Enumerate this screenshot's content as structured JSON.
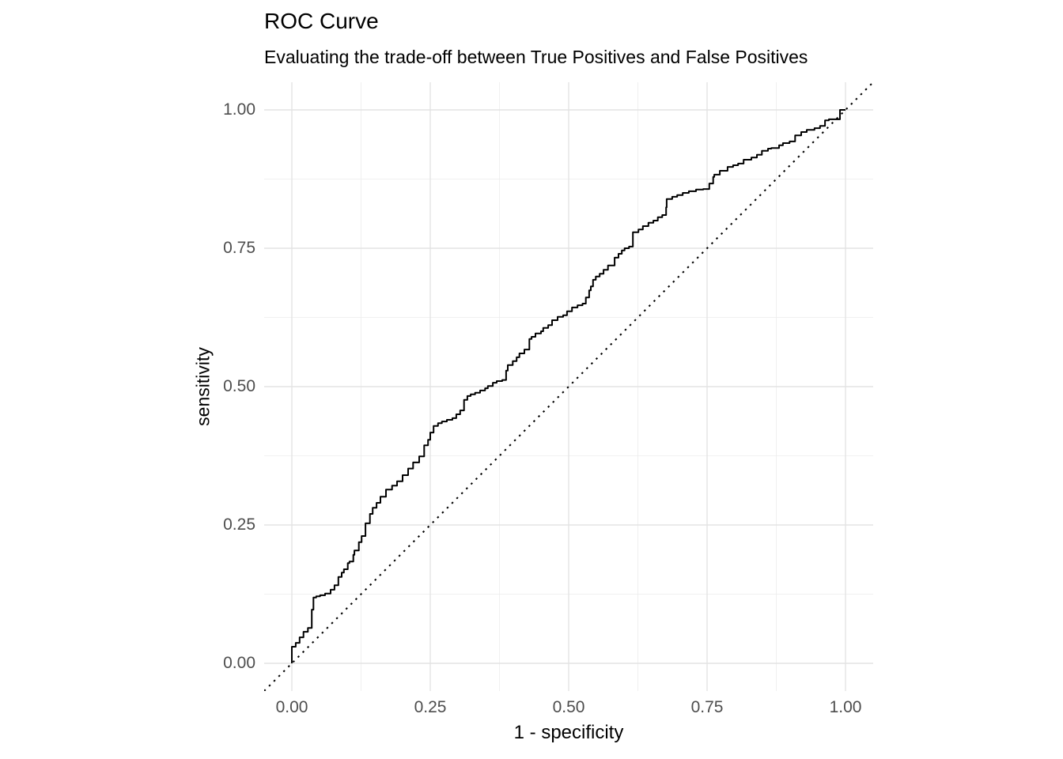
{
  "title": "ROC Curve",
  "subtitle": "Evaluating the trade-off between True Positives and False Positives",
  "colors": {
    "background": "#ffffff",
    "title_text": "#000000",
    "subtitle_text": "#000000",
    "axis_title_text": "#000000",
    "axis_tick_text": "#4d4d4d",
    "grid_major": "#e3e3e3",
    "grid_minor": "#ededed",
    "roc_curve": "#000000",
    "chance_diagonal": "#000000"
  },
  "chart_data": {
    "type": "line",
    "title": "ROC Curve",
    "subtitle": "Evaluating the trade-off between True Positives and False Positives",
    "xlabel": "1 - specificity",
    "ylabel": "sensitivity",
    "xlim": [
      -0.05,
      1.05
    ],
    "ylim": [
      -0.05,
      1.05
    ],
    "grid": "major+minor",
    "legend": "none",
    "x_axis": {
      "ticks": [
        {
          "value": 0.0,
          "label": "0.00"
        },
        {
          "value": 0.25,
          "label": "0.25"
        },
        {
          "value": 0.5,
          "label": "0.50"
        },
        {
          "value": 0.75,
          "label": "0.75"
        },
        {
          "value": 1.0,
          "label": "1.00"
        }
      ],
      "minor_ticks": [
        0.125,
        0.375,
        0.625,
        0.875
      ]
    },
    "y_axis": {
      "ticks": [
        {
          "value": 0.0,
          "label": "0.00"
        },
        {
          "value": 0.25,
          "label": "0.25"
        },
        {
          "value": 0.5,
          "label": "0.50"
        },
        {
          "value": 0.75,
          "label": "0.75"
        },
        {
          "value": 1.0,
          "label": "1.00"
        }
      ],
      "minor_ticks": [
        0.125,
        0.375,
        0.625,
        0.875
      ]
    },
    "series": [
      {
        "name": "roc_curve",
        "style": "step-solid",
        "points": [
          [
            0.0,
            0.0
          ],
          [
            0.0,
            0.02
          ],
          [
            0.007,
            0.03
          ],
          [
            0.014,
            0.037
          ],
          [
            0.021,
            0.047
          ],
          [
            0.029,
            0.057
          ],
          [
            0.036,
            0.064
          ],
          [
            0.039,
            0.097
          ],
          [
            0.044,
            0.119
          ],
          [
            0.051,
            0.121
          ],
          [
            0.06,
            0.123
          ],
          [
            0.07,
            0.126
          ],
          [
            0.077,
            0.133
          ],
          [
            0.084,
            0.141
          ],
          [
            0.09,
            0.156
          ],
          [
            0.094,
            0.164
          ],
          [
            0.101,
            0.17
          ],
          [
            0.104,
            0.181
          ],
          [
            0.111,
            0.184
          ],
          [
            0.113,
            0.196
          ],
          [
            0.121,
            0.204
          ],
          [
            0.126,
            0.219
          ],
          [
            0.133,
            0.23
          ],
          [
            0.141,
            0.253
          ],
          [
            0.146,
            0.27
          ],
          [
            0.153,
            0.281
          ],
          [
            0.16,
            0.29
          ],
          [
            0.17,
            0.301
          ],
          [
            0.181,
            0.314
          ],
          [
            0.19,
            0.321
          ],
          [
            0.2,
            0.329
          ],
          [
            0.21,
            0.34
          ],
          [
            0.219,
            0.352
          ],
          [
            0.23,
            0.363
          ],
          [
            0.239,
            0.374
          ],
          [
            0.246,
            0.394
          ],
          [
            0.25,
            0.404
          ],
          [
            0.256,
            0.417
          ],
          [
            0.264,
            0.429
          ],
          [
            0.271,
            0.434
          ],
          [
            0.28,
            0.437
          ],
          [
            0.29,
            0.44
          ],
          [
            0.297,
            0.443
          ],
          [
            0.304,
            0.45
          ],
          [
            0.311,
            0.457
          ],
          [
            0.317,
            0.476
          ],
          [
            0.323,
            0.483
          ],
          [
            0.331,
            0.486
          ],
          [
            0.34,
            0.489
          ],
          [
            0.349,
            0.493
          ],
          [
            0.354,
            0.497
          ],
          [
            0.363,
            0.501
          ],
          [
            0.37,
            0.507
          ],
          [
            0.38,
            0.51
          ],
          [
            0.387,
            0.512
          ],
          [
            0.39,
            0.529
          ],
          [
            0.399,
            0.539
          ],
          [
            0.406,
            0.546
          ],
          [
            0.411,
            0.553
          ],
          [
            0.42,
            0.56
          ],
          [
            0.429,
            0.567
          ],
          [
            0.433,
            0.586
          ],
          [
            0.44,
            0.59
          ],
          [
            0.45,
            0.596
          ],
          [
            0.454,
            0.6
          ],
          [
            0.463,
            0.606
          ],
          [
            0.47,
            0.611
          ],
          [
            0.48,
            0.62
          ],
          [
            0.49,
            0.626
          ],
          [
            0.497,
            0.629
          ],
          [
            0.506,
            0.636
          ],
          [
            0.516,
            0.643
          ],
          [
            0.525,
            0.647
          ],
          [
            0.531,
            0.65
          ],
          [
            0.537,
            0.661
          ],
          [
            0.54,
            0.674
          ],
          [
            0.544,
            0.681
          ],
          [
            0.549,
            0.693
          ],
          [
            0.556,
            0.699
          ],
          [
            0.563,
            0.704
          ],
          [
            0.571,
            0.711
          ],
          [
            0.583,
            0.719
          ],
          [
            0.59,
            0.733
          ],
          [
            0.596,
            0.74
          ],
          [
            0.601,
            0.746
          ],
          [
            0.609,
            0.75
          ],
          [
            0.616,
            0.753
          ],
          [
            0.626,
            0.779
          ],
          [
            0.634,
            0.784
          ],
          [
            0.644,
            0.79
          ],
          [
            0.653,
            0.796
          ],
          [
            0.661,
            0.8
          ],
          [
            0.669,
            0.806
          ],
          [
            0.676,
            0.81
          ],
          [
            0.677,
            0.824
          ],
          [
            0.687,
            0.839
          ],
          [
            0.696,
            0.843
          ],
          [
            0.706,
            0.846
          ],
          [
            0.717,
            0.85
          ],
          [
            0.73,
            0.853
          ],
          [
            0.743,
            0.856
          ],
          [
            0.754,
            0.857
          ],
          [
            0.761,
            0.867
          ],
          [
            0.763,
            0.879
          ],
          [
            0.773,
            0.883
          ],
          [
            0.787,
            0.89
          ],
          [
            0.797,
            0.897
          ],
          [
            0.806,
            0.9
          ],
          [
            0.816,
            0.903
          ],
          [
            0.83,
            0.91
          ],
          [
            0.84,
            0.914
          ],
          [
            0.849,
            0.919
          ],
          [
            0.86,
            0.926
          ],
          [
            0.866,
            0.93
          ],
          [
            0.88,
            0.931
          ],
          [
            0.887,
            0.936
          ],
          [
            0.899,
            0.94
          ],
          [
            0.909,
            0.943
          ],
          [
            0.92,
            0.954
          ],
          [
            0.93,
            0.96
          ],
          [
            0.944,
            0.964
          ],
          [
            0.954,
            0.967
          ],
          [
            0.963,
            0.971
          ],
          [
            0.97,
            0.981
          ],
          [
            0.973,
            0.983
          ],
          [
            0.99,
            0.983
          ],
          [
            0.991,
            1.0
          ],
          [
            1.0,
            1.0
          ]
        ]
      },
      {
        "name": "chance_diagonal",
        "style": "dotted",
        "points": [
          [
            -0.05,
            -0.05
          ],
          [
            1.05,
            1.05
          ]
        ]
      }
    ]
  }
}
